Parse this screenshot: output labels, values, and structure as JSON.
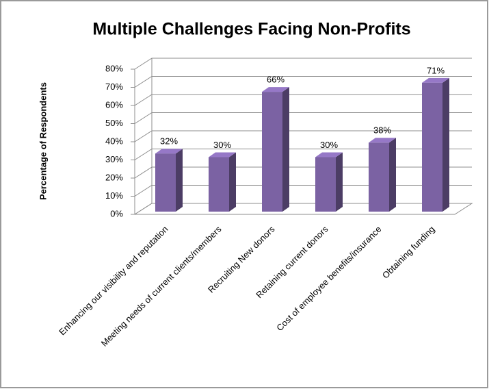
{
  "chart_data": {
    "type": "bar3d",
    "title": "Multiple Challenges Facing Non-Profits",
    "y_label": "Percentage of Respondents",
    "categories": [
      "Enhancing our visibility and reputation",
      "Meeting needs of current clients/members",
      "Recruiting New donors",
      "Retaining current donors",
      "Cost of employee benefits/insurance",
      "Obtaining funding"
    ],
    "values": [
      32,
      30,
      66,
      30,
      38,
      71
    ],
    "value_labels": [
      "32%",
      "30%",
      "66%",
      "30%",
      "38%",
      "71%"
    ],
    "color": "#7b62a3",
    "ylim": [
      0,
      80
    ],
    "yticks": [
      {
        "value": 0,
        "label": "0%"
      },
      {
        "value": 10,
        "label": "10%"
      },
      {
        "value": 20,
        "label": "20%"
      },
      {
        "value": 30,
        "label": "30%"
      },
      {
        "value": 40,
        "label": "40%"
      },
      {
        "value": 50,
        "label": "50%"
      },
      {
        "value": 60,
        "label": "60%"
      },
      {
        "value": 70,
        "label": "70%"
      },
      {
        "value": 80,
        "label": "80%"
      }
    ],
    "grid": true
  }
}
